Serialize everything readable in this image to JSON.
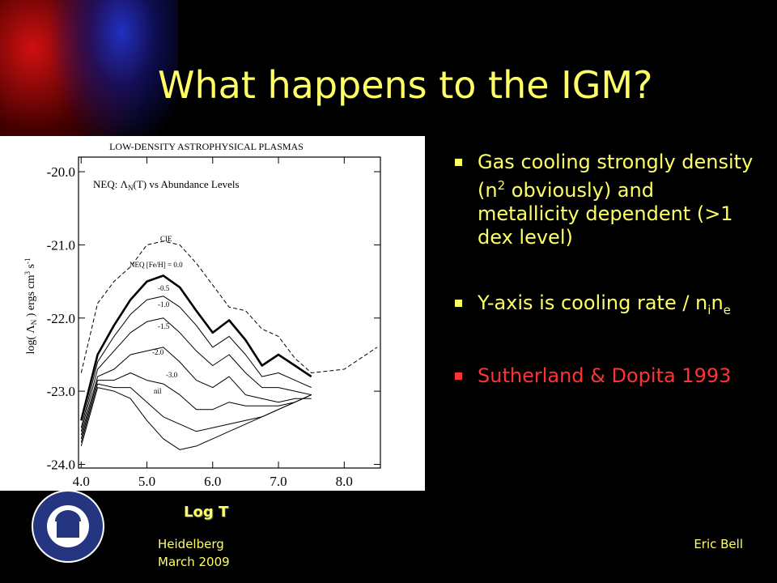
{
  "slide": {
    "title": "What happens to the IGM?",
    "bullets": [
      [
        "Gas cooling strongly density (n",
        "2",
        " obviously) and metallicity dependent (>1 dex level)"
      ],
      [
        "Y-axis is cooling rate / n",
        "i",
        "n",
        "e"
      ],
      [
        "Sutherland & Dopita 1993"
      ]
    ],
    "footer_left": [
      "Heidelberg",
      "March 2009"
    ],
    "footer_right": "Eric Bell"
  },
  "chart_data": {
    "type": "line",
    "title": "LOW-DENSITY ASTROPHYSICAL PLASMAS",
    "subtitle": [
      "NEQ:  Λ",
      "N",
      "(T) vs Abundance Levels"
    ],
    "y_label": [
      "log( Λ",
      "N",
      " ) ergs cm",
      "3",
      " s",
      "-1"
    ],
    "x_label": "Log T",
    "xlim": [
      3.96,
      8.55
    ],
    "ylim": [
      -24.05,
      -19.8
    ],
    "xticks": [
      {
        "value": 4,
        "label": "4.0"
      },
      {
        "value": 5,
        "label": "5.0"
      },
      {
        "value": 6,
        "label": "6.0"
      },
      {
        "value": 7,
        "label": "7.0"
      },
      {
        "value": 8,
        "label": "8.0"
      }
    ],
    "yticks": [
      {
        "value": -20,
        "label": "-20.0"
      },
      {
        "value": -21,
        "label": "-21.0"
      },
      {
        "value": -22,
        "label": "-22.0"
      },
      {
        "value": -23,
        "label": "-23.0"
      },
      {
        "value": -24,
        "label": "-24.0"
      }
    ],
    "x": [
      4.0,
      4.25,
      4.5,
      4.75,
      5.0,
      5.25,
      5.5,
      5.75,
      6.0,
      6.25,
      6.5,
      6.75,
      7.0,
      7.25,
      7.5,
      8.0,
      8.5
    ],
    "series": [
      {
        "name": "CIE",
        "color": "#000000",
        "line_style": "dashed",
        "values": [
          -22.75,
          -21.8,
          -21.5,
          -21.3,
          -21.0,
          -20.95,
          -21.0,
          -21.25,
          -21.55,
          -21.85,
          -21.9,
          -22.15,
          -22.25,
          -22.55,
          -22.75,
          -22.7,
          -22.4
        ]
      },
      {
        "name": "NEQ [Fe/H] = 0.0",
        "color": "#000000",
        "values": [
          -23.4,
          -22.5,
          -22.1,
          -21.75,
          -21.5,
          -21.42,
          -21.58,
          -21.9,
          -22.2,
          -22.03,
          -22.3,
          -22.65,
          -22.5,
          -22.65,
          -22.8,
          null,
          null
        ]
      },
      {
        "name": "-0.5",
        "color": "#000000",
        "values": [
          -23.5,
          -22.6,
          -22.25,
          -21.95,
          -21.75,
          -21.7,
          -21.85,
          -22.1,
          -22.4,
          -22.25,
          -22.5,
          -22.8,
          -22.75,
          -22.85,
          -22.95,
          null,
          null
        ]
      },
      {
        "name": "-1.0",
        "color": "#000000",
        "values": [
          -23.55,
          -22.7,
          -22.45,
          -22.2,
          -22.05,
          -22.0,
          -22.2,
          -22.45,
          -22.65,
          -22.5,
          -22.75,
          -22.95,
          -22.95,
          -23.0,
          -23.05,
          null,
          null
        ]
      },
      {
        "name": "-1.5",
        "color": "#000000",
        "values": [
          -23.6,
          -22.8,
          -22.7,
          -22.5,
          -22.45,
          -22.4,
          -22.6,
          -22.85,
          -22.95,
          -22.8,
          -23.05,
          -23.1,
          -23.15,
          -23.1,
          -23.1,
          null,
          null
        ]
      },
      {
        "name": "-2.0",
        "color": "#000000",
        "values": [
          -23.65,
          -22.85,
          -22.85,
          -22.75,
          -22.85,
          -22.9,
          -23.05,
          -23.25,
          -23.25,
          -23.15,
          -23.2,
          -23.2,
          -23.2,
          -23.15,
          -23.05,
          null,
          null
        ]
      },
      {
        "name": "-3.0",
        "color": "#000000",
        "values": [
          -23.7,
          -22.9,
          -22.95,
          -22.95,
          -23.15,
          -23.35,
          -23.45,
          -23.55,
          -23.5,
          -23.45,
          -23.4,
          -23.35,
          -23.25,
          -23.15,
          -23.05,
          null,
          null
        ]
      },
      {
        "name": "nil",
        "color": "#000000",
        "values": [
          -23.75,
          -22.95,
          -23.0,
          -23.1,
          -23.4,
          -23.65,
          -23.8,
          -23.75,
          -23.65,
          -23.55,
          -23.45,
          -23.35,
          -23.25,
          -23.15,
          -23.05,
          null,
          null
        ]
      }
    ]
  }
}
